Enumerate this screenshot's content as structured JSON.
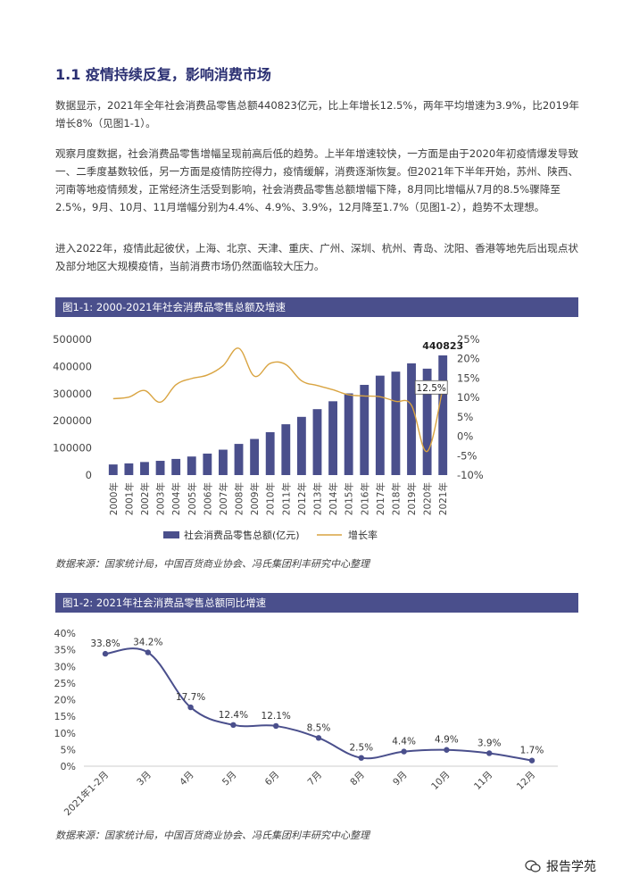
{
  "section": {
    "title": "1.1 疫情持续反复，影响消费市场"
  },
  "paragraphs": [
    "数据显示，2021年全年社会消费品零售总额440823亿元，比上年增长12.5%，两年平均增速为3.9%，比2019年增长8%（见图1-1）。",
    "观察月度数据，社会消费品零售增幅呈现前高后低的趋势。上半年增速较快，一方面是由于2020年初疫情爆发导致一、二季度基数较低，另一方面是疫情防控得力，疫情缓解，消费逐渐恢复。但2021年下半年开始，苏州、陕西、河南等地疫情频发，正常经济生活受到影响，社会消费品零售总额增幅下降，8月同比增幅从7月的8.5%骤降至2.5%，9月、10月、11月增幅分别为4.4%、4.9%、3.9%，12月降至1.7%（见图1-2），趋势不太理想。",
    "进入2022年，疫情此起彼伏，上海、北京、天津、重庆、广州、深圳、杭州、青岛、沈阳、香港等地先后出现点状及部分地区大规模疫情，当前消费市场仍然面临较大压力。"
  ],
  "figures": {
    "fig1": {
      "title": "图1-1: 2000-2021年社会消费品零售总额及增速",
      "source": "数据来源：国家统计局，中国百货商业协会、冯氏集团利丰研究中心整理"
    },
    "fig2": {
      "title": "图1-2: 2021年社会消费品零售总额同比增速",
      "source": "数据来源：国家统计局，中国百货商业协会、冯氏集团利丰研究中心整理"
    }
  },
  "watermark": {
    "text": "报告学苑"
  },
  "colors": {
    "bar": "#4a4f8c",
    "growth_line": "#d9a441",
    "line2": "#4a4f8c"
  },
  "chart_data": [
    {
      "type": "bar",
      "categories": [
        "2000年",
        "2001年",
        "2002年",
        "2003年",
        "2004年",
        "2005年",
        "2006年",
        "2007年",
        "2008年",
        "2009年",
        "2010年",
        "2011年",
        "2012年",
        "2013年",
        "2014年",
        "2015年",
        "2016年",
        "2017年",
        "2018年",
        "2019年",
        "2020年",
        "2021年"
      ],
      "series": [
        {
          "name": "社会消费品零售总额(亿元)",
          "type": "bar",
          "axis": "left",
          "values": [
            39106,
            43055,
            48136,
            52516,
            59501,
            68353,
            79145,
            93572,
            114830,
            133048,
            158008,
            187206,
            214433,
            242843,
            271896,
            300931,
            332316,
            366262,
            380987,
            411649,
            391981,
            440823
          ]
        },
        {
          "name": "增长率",
          "type": "line",
          "axis": "right",
          "values": [
            9.7,
            10.1,
            11.8,
            8.8,
            13.3,
            14.9,
            15.8,
            18.2,
            22.7,
            15.5,
            18.8,
            18.5,
            14.3,
            13.1,
            12.0,
            10.7,
            10.4,
            10.2,
            9.0,
            8.0,
            -3.9,
            12.5
          ]
        }
      ],
      "left_ticks": [
        "0",
        "100000",
        "200000",
        "300000",
        "400000",
        "500000"
      ],
      "ylim_left": [
        0,
        500000
      ],
      "right_ticks": [
        "-10%",
        "-5%",
        "0%",
        "5%",
        "10%",
        "15%",
        "20%",
        "25%"
      ],
      "ylim_right": [
        -10,
        25
      ],
      "annotations": {
        "last_bar_label": "440823",
        "last_rate_label": "12.5%"
      },
      "legend": "bottom"
    },
    {
      "type": "line",
      "x": [
        "2021年1-2月",
        "3月",
        "4月",
        "5月",
        "6月",
        "7月",
        "8月",
        "9月",
        "10月",
        "11月",
        "12月"
      ],
      "values": [
        33.8,
        34.2,
        17.7,
        12.4,
        12.1,
        8.5,
        2.5,
        4.4,
        4.9,
        3.9,
        1.7
      ],
      "labels": [
        "33.8%",
        "34.2%",
        "17.7%",
        "12.4%",
        "12.1%",
        "8.5%",
        "2.5%",
        "4.4%",
        "4.9%",
        "3.9%",
        "1.7%"
      ],
      "y_ticks": [
        "0%",
        "5%",
        "10%",
        "15%",
        "20%",
        "25%",
        "30%",
        "35%",
        "40%"
      ],
      "ylim": [
        0,
        40
      ],
      "grid": false
    }
  ]
}
